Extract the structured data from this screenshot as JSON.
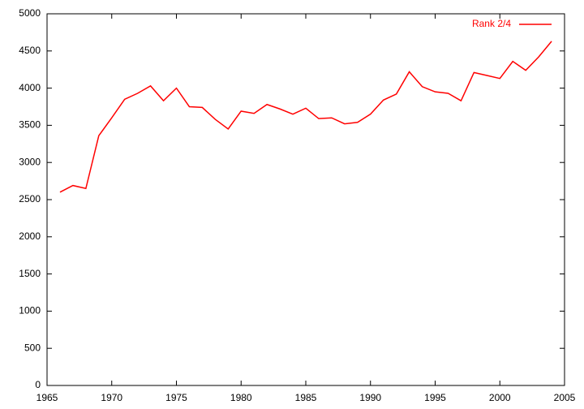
{
  "chart_data": {
    "type": "line",
    "x": [
      1966,
      1967,
      1968,
      1969,
      1970,
      1971,
      1972,
      1973,
      1974,
      1975,
      1976,
      1977,
      1978,
      1979,
      1980,
      1981,
      1982,
      1983,
      1984,
      1985,
      1986,
      1987,
      1988,
      1989,
      1990,
      1991,
      1992,
      1993,
      1994,
      1995,
      1996,
      1997,
      1998,
      1999,
      2000,
      2001,
      2002,
      2003,
      2004
    ],
    "series": [
      {
        "name": "Rank 2/4",
        "color": "#ff0000",
        "values": [
          2600,
          2690,
          2650,
          3360,
          3600,
          3850,
          3930,
          4030,
          3830,
          4000,
          3750,
          3740,
          3580,
          3450,
          3690,
          3660,
          3780,
          3720,
          3650,
          3730,
          3590,
          3600,
          3520,
          3540,
          3650,
          3840,
          3920,
          4220,
          4020,
          3950,
          3930,
          3830,
          4210,
          4170,
          4130,
          4360,
          4240,
          4420,
          4630
        ]
      }
    ],
    "xlim": [
      1965,
      2005
    ],
    "xticks": [
      1965,
      1970,
      1975,
      1980,
      1985,
      1990,
      1995,
      2000,
      2005
    ],
    "ylim": [
      0,
      5000
    ],
    "yticks": [
      0,
      500,
      1000,
      1500,
      2000,
      2500,
      3000,
      3500,
      4000,
      4500,
      5000
    ],
    "legend": "top-right"
  }
}
